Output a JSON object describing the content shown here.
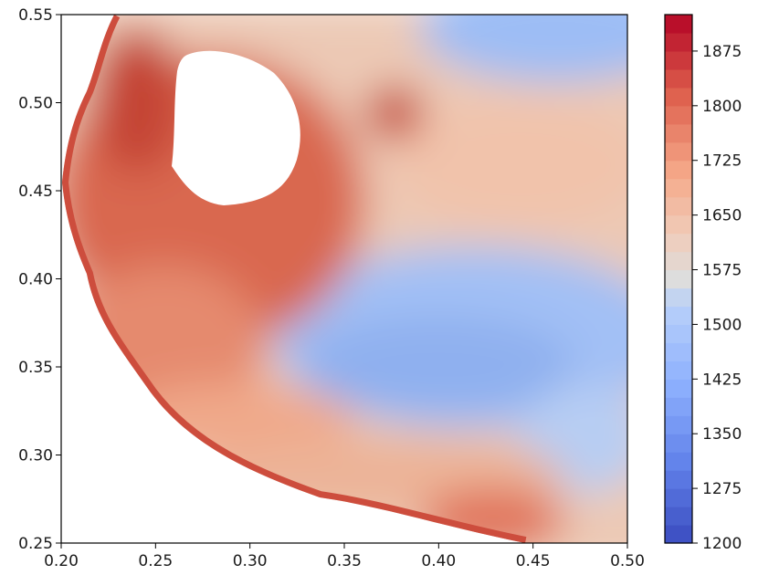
{
  "chart_data": {
    "type": "contourf",
    "title": "",
    "xlabel": "",
    "ylabel": "",
    "xlim": [
      0.2,
      0.5
    ],
    "ylim": [
      0.25,
      0.55
    ],
    "x_ticks": [
      0.2,
      0.25,
      0.3,
      0.35,
      0.4,
      0.45,
      0.5
    ],
    "y_ticks": [
      0.25,
      0.3,
      0.35,
      0.4,
      0.45,
      0.5,
      0.55
    ],
    "x_tick_labels": [
      "0.20",
      "0.25",
      "0.30",
      "0.35",
      "0.40",
      "0.45",
      "0.50"
    ],
    "y_tick_labels": [
      "0.25",
      "0.30",
      "0.35",
      "0.40",
      "0.45",
      "0.50",
      "0.55"
    ],
    "colormap": "coolwarm",
    "colorbar": {
      "range": [
        1200,
        1925
      ],
      "ticks": [
        1200,
        1275,
        1350,
        1425,
        1500,
        1575,
        1650,
        1725,
        1800,
        1875
      ],
      "tick_labels": [
        "1200",
        "1275",
        "1350",
        "1425",
        "1500",
        "1575",
        "1650",
        "1725",
        "1800",
        "1875"
      ],
      "position": "right"
    },
    "grid": false,
    "features": [
      {
        "kind": "blank-region",
        "description_value": "no data",
        "center": [
          0.288,
          0.486
        ],
        "radius": [
          0.034,
          0.045
        ]
      },
      {
        "kind": "high-band",
        "value_approx": 1840
      },
      {
        "kind": "low-region",
        "value_approx": 1440,
        "center": [
          0.4,
          0.36
        ]
      },
      {
        "kind": "local-max",
        "value_approx": 1830,
        "center": [
          0.377,
          0.492
        ]
      }
    ]
  }
}
